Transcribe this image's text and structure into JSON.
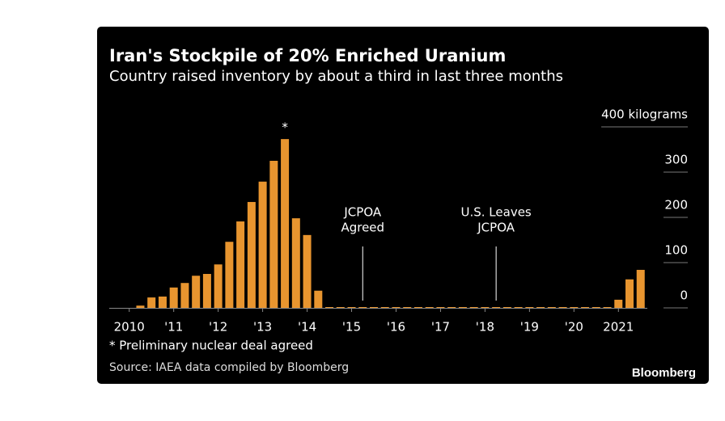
{
  "chart_data": {
    "type": "bar",
    "title": "Iran's Stockpile of 20% Enriched Uranium",
    "subtitle": "Country raised inventory by about a third in last three months",
    "x": [
      2010.25,
      2010.5,
      2010.75,
      2011,
      2011.25,
      2011.5,
      2011.75,
      2012,
      2012.25,
      2012.5,
      2012.75,
      2013,
      2013.25,
      2013.5,
      2013.75,
      2014,
      2014.25,
      2014.5,
      2014.75,
      2015,
      2015.25,
      2015.5,
      2015.75,
      2016,
      2016.25,
      2016.5,
      2016.75,
      2017,
      2017.25,
      2017.5,
      2017.75,
      2018,
      2018.25,
      2018.5,
      2018.75,
      2019,
      2019.25,
      2019.5,
      2019.75,
      2020,
      2020.25,
      2020.5,
      2020.75,
      2021,
      2021.25,
      2021.5
    ],
    "values": [
      5,
      23,
      25,
      45,
      55,
      71,
      75,
      96,
      146,
      191,
      234,
      279,
      325,
      373,
      198,
      161,
      38,
      0,
      0,
      0,
      0,
      0,
      0,
      0,
      0,
      0,
      0,
      0,
      0,
      0,
      0,
      0,
      0,
      0,
      0,
      0,
      0,
      0,
      0,
      0,
      0,
      0,
      0,
      18,
      63,
      84
    ],
    "color": "#e8952f",
    "xlim": [
      2009.55,
      2021.65
    ],
    "xticks": [
      2010,
      {
        "value": 2011,
        "label": "'11"
      },
      {
        "value": 2012,
        "label": "'12"
      },
      {
        "value": 2013,
        "label": "'13"
      },
      {
        "value": 2014,
        "label": "'14"
      },
      {
        "value": 2015,
        "label": "'15"
      },
      {
        "value": 2016,
        "label": "'16"
      },
      {
        "value": 2017,
        "label": "'17"
      },
      {
        "value": 2018,
        "label": "'18"
      },
      {
        "value": 2019,
        "label": "'19"
      },
      {
        "value": 2020,
        "label": "'20"
      },
      2021
    ],
    "ylim": [
      0,
      400
    ],
    "yticks": [
      0,
      100,
      200,
      300,
      {
        "value": 400,
        "label": "400 kilograms"
      }
    ],
    "annotations": [
      {
        "x": 2015.25,
        "label": [
          "JCPOA",
          "Agreed"
        ]
      },
      {
        "x": 2018.25,
        "label": [
          "U.S. Leaves",
          "JCPOA"
        ]
      }
    ],
    "peak_marker": {
      "x": 2013.5,
      "label": "*"
    },
    "footnote": "* Preliminary nuclear deal agreed",
    "source": "Source: IAEA data compiled by Bloomberg",
    "brand": "Bloomberg"
  }
}
